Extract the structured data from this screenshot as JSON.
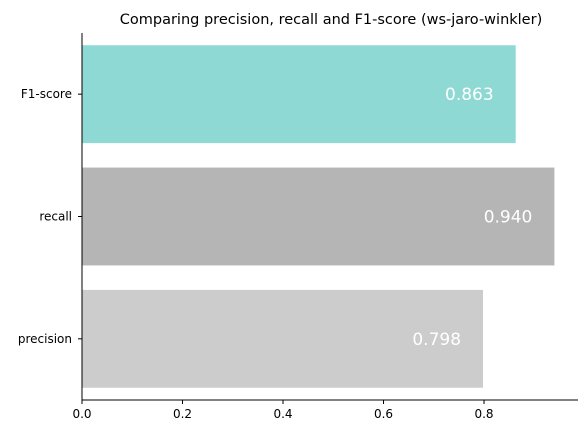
{
  "chart_data": {
    "type": "bar",
    "orientation": "horizontal",
    "title": "Comparing precision, recall and F1-score (ws-jaro-winkler)",
    "xlabel": "",
    "ylabel": "",
    "categories": [
      "precision",
      "recall",
      "F1-score"
    ],
    "values": [
      0.798,
      0.94,
      0.863
    ],
    "value_labels": [
      "0.798",
      "0.940",
      "0.863"
    ],
    "colors": [
      "#cccccc",
      "#b5b5b5",
      "#8fd9d4"
    ],
    "xlim": [
      0,
      0.987
    ],
    "xticks": [
      0.0,
      0.2,
      0.4,
      0.6,
      0.8
    ],
    "xtick_labels": [
      "0.0",
      "0.2",
      "0.4",
      "0.6",
      "0.8"
    ],
    "grid": false,
    "legend": "none"
  }
}
